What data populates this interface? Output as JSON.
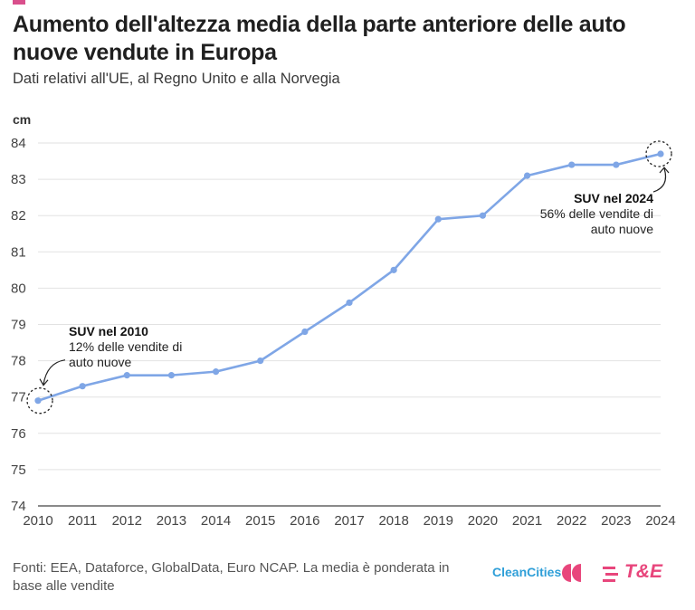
{
  "header": {
    "title": "Aumento dell'altezza media della parte anteriore delle auto nuove vendute in Europa",
    "subtitle": "Dati relativi all'UE, al Regno Unito e alla Norvegia"
  },
  "chart_data": {
    "type": "line",
    "ylabel": "cm",
    "ylim": [
      74,
      84
    ],
    "yticks": [
      "74",
      "75",
      "76",
      "77",
      "78",
      "79",
      "80",
      "81",
      "82",
      "83",
      "84"
    ],
    "categories": [
      "2010",
      "2011",
      "2012",
      "2013",
      "2014",
      "2015",
      "2016",
      "2017",
      "2018",
      "2019",
      "2020",
      "2021",
      "2022",
      "2023",
      "2024"
    ],
    "values": [
      76.9,
      77.3,
      77.6,
      77.6,
      77.7,
      78.0,
      78.8,
      79.6,
      80.5,
      81.9,
      82.0,
      83.1,
      83.4,
      83.4,
      83.7
    ],
    "grid": true,
    "line_color": "#7fa6e6",
    "annotations": [
      {
        "title": "SUV nel 2010",
        "line1": "12% delle vendite di",
        "line2": "auto nuove"
      },
      {
        "title": "SUV nel 2024",
        "line1": "56% delle vendite di",
        "line2": "auto nuove"
      }
    ]
  },
  "footer": {
    "source": "Fonti: EEA, Dataforce, GlobalData, Euro NCAP. La media è ponderata in base alle vendite"
  },
  "logos": {
    "cleancities": "CleanCities",
    "te": "T&E"
  }
}
